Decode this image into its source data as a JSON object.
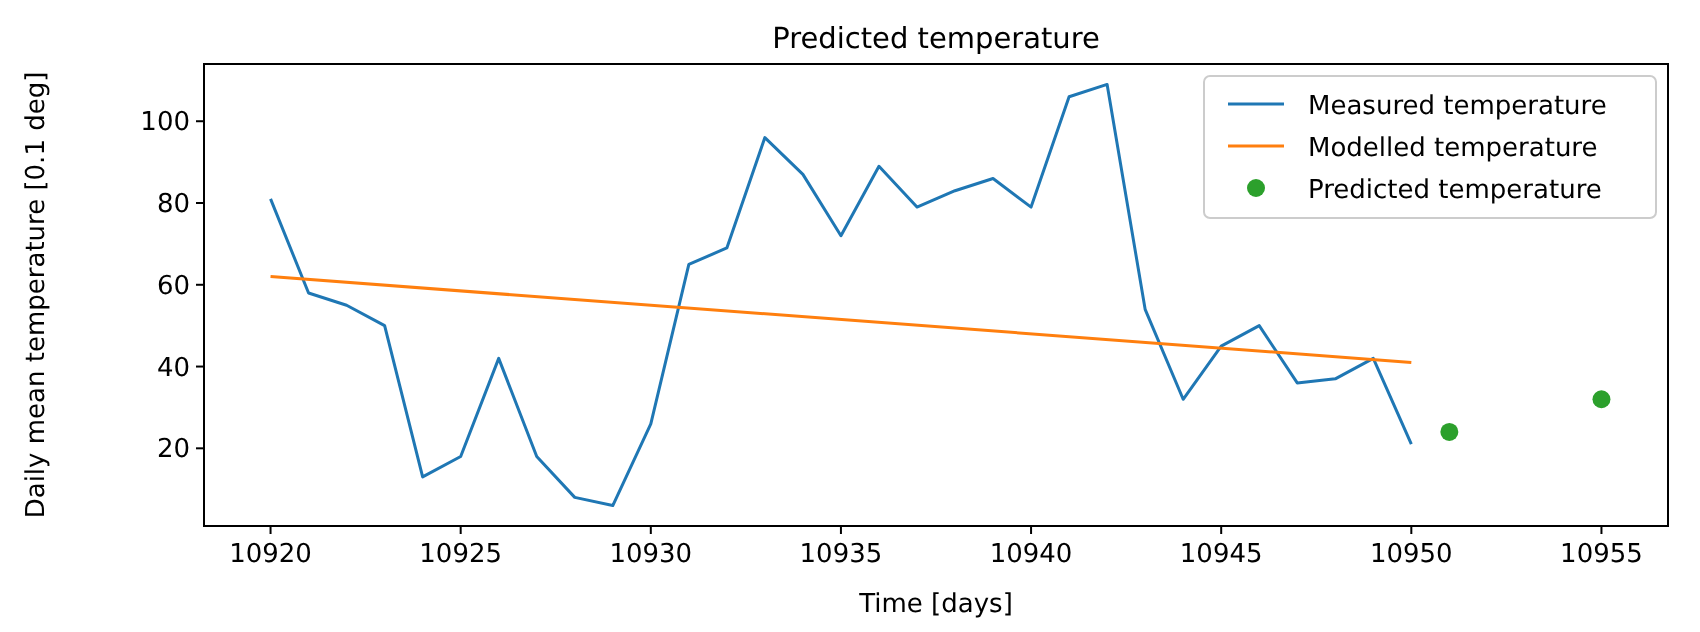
{
  "chart_data": {
    "type": "line",
    "title": "Predicted temperature",
    "xlabel": "Time [days]",
    "ylabel": "Daily mean temperature [0.1 deg]",
    "xlim": [
      10918.25,
      10956.75
    ],
    "xticks": [
      10920,
      10925,
      10930,
      10935,
      10940,
      10945,
      10950,
      10955
    ],
    "ylim": [
      1,
      114
    ],
    "yticks": [
      20,
      40,
      60,
      80,
      100
    ],
    "grid": false,
    "legend": "top right",
    "series": [
      {
        "name": "Measured temperature",
        "color": "#1f77b4",
        "x": [
          10920,
          10921,
          10922,
          10923,
          10924,
          10925,
          10926,
          10927,
          10928,
          10929,
          10930,
          10931,
          10932,
          10933,
          10934,
          10935,
          10936,
          10937,
          10938,
          10939,
          10940,
          10941,
          10942,
          10943,
          10944,
          10945,
          10946,
          10947,
          10948,
          10949,
          10950
        ],
        "values": [
          81,
          58,
          55,
          50,
          13,
          18,
          42,
          18,
          8,
          6,
          26,
          65,
          69,
          96,
          87,
          72,
          89,
          79,
          83,
          86,
          79,
          106,
          109,
          54,
          32,
          45,
          50,
          36,
          37,
          42,
          21
        ]
      },
      {
        "name": "Modelled temperature",
        "color": "#ff7f0e",
        "x": [
          10920,
          10950
        ],
        "values": [
          62,
          41
        ]
      },
      {
        "name": "Predicted temperature",
        "type": "scatter",
        "color": "#2ca02c",
        "marker": "circle",
        "x": [
          10951,
          10955
        ],
        "values": [
          24,
          32
        ]
      }
    ]
  }
}
